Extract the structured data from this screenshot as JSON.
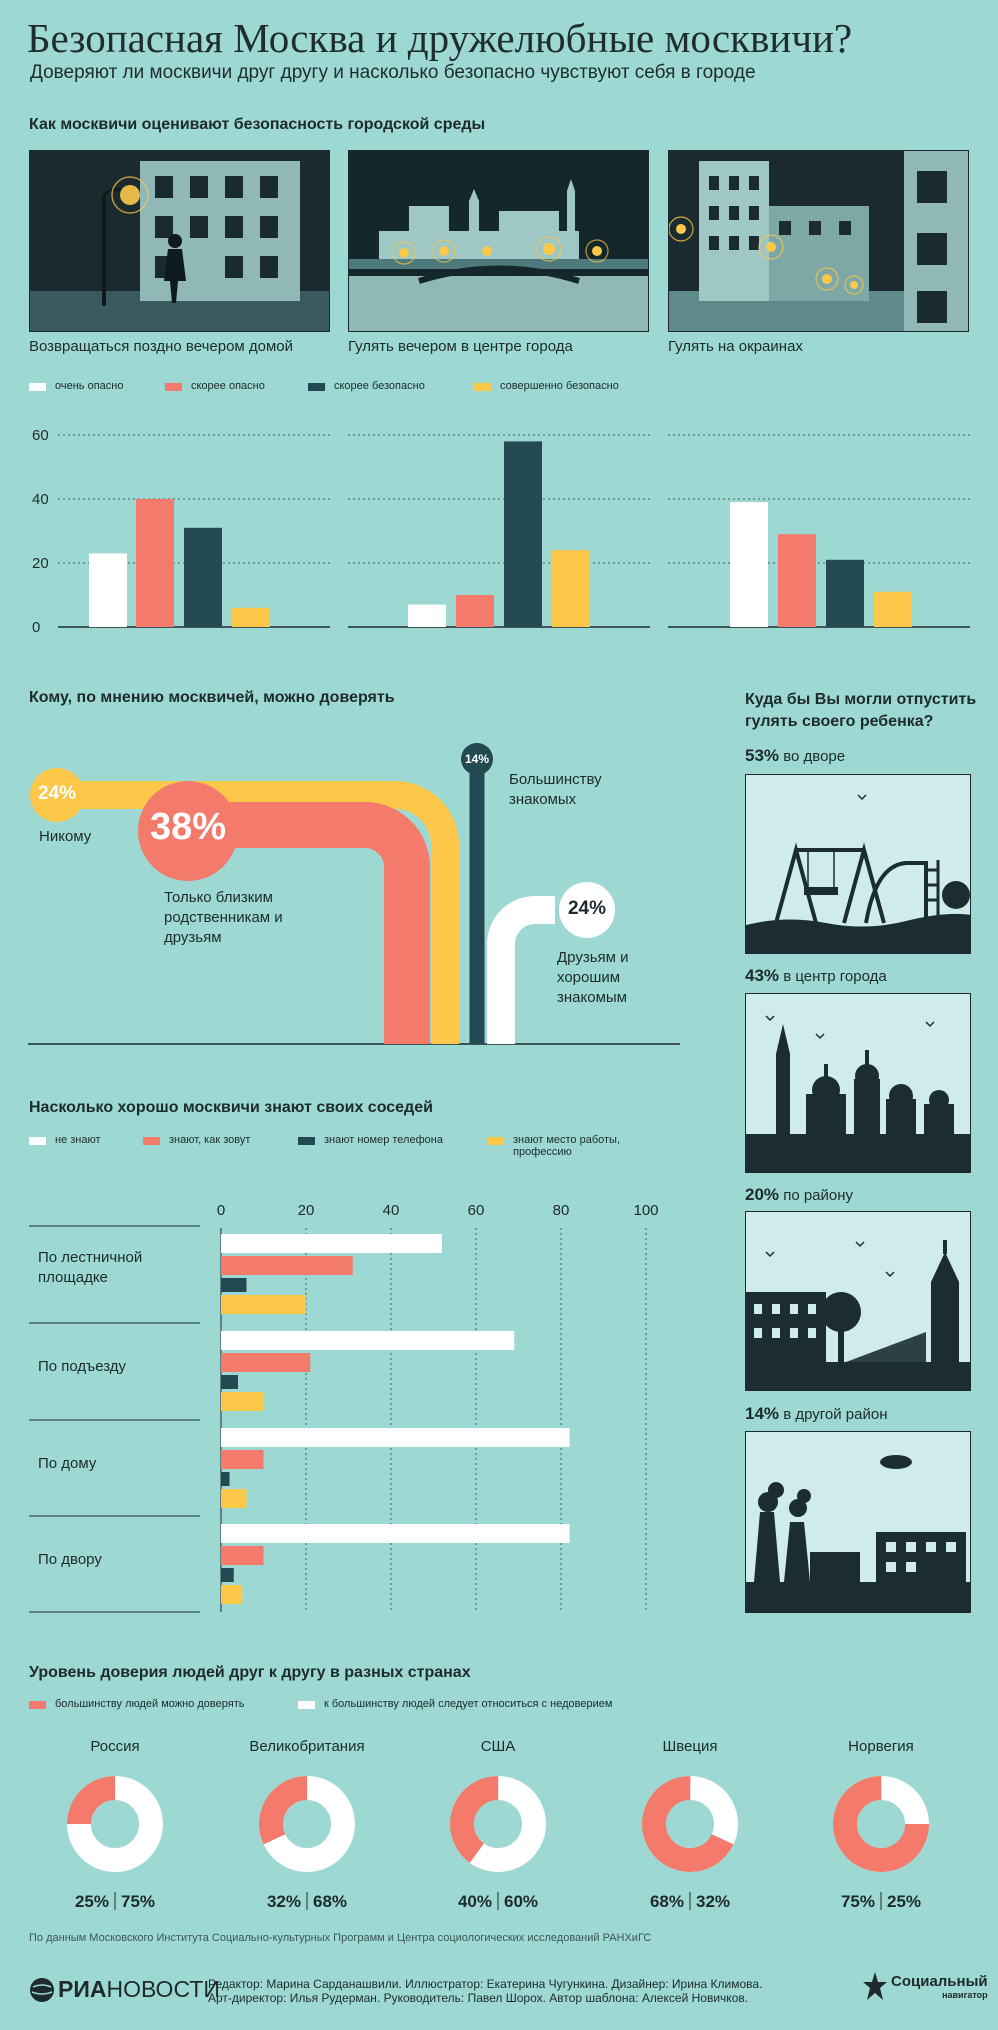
{
  "header": {
    "title": "Безопасная Москва и дружелюбные москвичи?",
    "subtitle": "Доверяют ли москвичи друг другу и насколько безопасно чувствуют себя в городе"
  },
  "safety": {
    "heading": "Как москвичи оценивают безопасность городской среды",
    "photos": [
      {
        "caption": "Возвращаться поздно вечером домой"
      },
      {
        "caption": "Гулять вечером в центре города"
      },
      {
        "caption": "Гулять на окраинах"
      }
    ],
    "legend": [
      "очень опасно",
      "скорее опасно",
      "скорее безопасно",
      "совершенно безопасно"
    ]
  },
  "trust": {
    "heading": "Кому, по мнению москвичей, можно доверять",
    "items": [
      {
        "value": "24%",
        "label": "Никому"
      },
      {
        "value": "38%",
        "label": "Только близким родственникам и друзьям"
      },
      {
        "value": "14%",
        "label": "Большинству знакомых"
      },
      {
        "value": "24%",
        "label": "Друзьям и хорошим знакомым"
      }
    ]
  },
  "child": {
    "heading": "Куда бы Вы могли отпустить гулять своего ребенка?",
    "items": [
      {
        "pct": "53%",
        "label": "во дворе"
      },
      {
        "pct": "43%",
        "label": "в центр города"
      },
      {
        "pct": "20%",
        "label": "по району"
      },
      {
        "pct": "14%",
        "label": "в другой район"
      }
    ]
  },
  "neighbors": {
    "heading": "Насколько хорошо москвичи знают своих соседей",
    "legend": [
      "не знают",
      "знают, как зовут",
      "знают номер телефона",
      "знают место работы, профессию"
    ]
  },
  "countries": {
    "heading": "Уровень доверия людей друг к другу в разных странах",
    "legend": [
      "большинству людей можно доверять",
      "к большинству людей следует относиться с недоверием"
    ]
  },
  "footer": {
    "source": "По данным Московского Института Социально-культурных Программ и Центра социологических исследований РАНХиГС",
    "logo_left_a": "РИА",
    "logo_left_b": "НОВОСТИ",
    "credits_1": "Редактор: Марина Сарданашвили. Иллюстратор: Екатерина Чугункина. Дизайнер: Ирина Климова.",
    "credits_2": "Арт-директор: Илья Рудерман. Руководитель: Павел Шорох. Автор шаблона: Алексей Новичков.",
    "logo_right_a": "Социальный",
    "logo_right_b": "навигатор"
  },
  "colors": {
    "white": "#ffffff",
    "red": "#f47a6b",
    "dark": "#234a52",
    "yellow": "#fdc84a",
    "background": "#9dd8d3"
  },
  "chart_data": [
    {
      "type": "bar",
      "categories": [
        "Возвращаться поздно вечером домой",
        "Гулять вечером в центре города",
        "Гулять на окраинах"
      ],
      "series": [
        {
          "name": "очень опасно",
          "values": [
            23,
            7,
            39
          ]
        },
        {
          "name": "скорее опасно",
          "values": [
            40,
            10,
            29
          ]
        },
        {
          "name": "скорее безопасно",
          "values": [
            31,
            58,
            21
          ]
        },
        {
          "name": "совершенно безопасно",
          "values": [
            6,
            24,
            11
          ]
        }
      ],
      "yticks": [
        0,
        20,
        40,
        60
      ],
      "ylim": [
        0,
        60
      ]
    },
    {
      "type": "bar",
      "orientation": "horizontal",
      "categories": [
        "По лестничной площадке",
        "По подъезду",
        "По дому",
        "По двору"
      ],
      "series": [
        {
          "name": "не знают",
          "values": [
            52,
            69,
            82,
            82
          ]
        },
        {
          "name": "знают, как зовут",
          "values": [
            31,
            21,
            10,
            10
          ]
        },
        {
          "name": "знают номер телефона",
          "values": [
            6,
            4,
            2,
            3
          ]
        },
        {
          "name": "знают место работы, профессию",
          "values": [
            20,
            10,
            6,
            5
          ]
        }
      ],
      "xticks": [
        0,
        20,
        40,
        60,
        80,
        100
      ],
      "xlim": [
        0,
        100
      ]
    },
    {
      "type": "pie",
      "charts": [
        {
          "title": "Россия",
          "values": [
            25,
            75
          ],
          "labels": [
            "25%",
            "75%"
          ]
        },
        {
          "title": "Великобритания",
          "values": [
            32,
            68
          ],
          "labels": [
            "32%",
            "68%"
          ]
        },
        {
          "title": "США",
          "values": [
            40,
            60
          ],
          "labels": [
            "40%",
            "60%"
          ]
        },
        {
          "title": "Швеция",
          "values": [
            68,
            32
          ],
          "labels": [
            "68%",
            "32%"
          ]
        },
        {
          "title": "Норвегия",
          "values": [
            75,
            25
          ],
          "labels": [
            "75%",
            "25%"
          ]
        }
      ],
      "series_names": [
        "большинству людей можно доверять",
        "к большинству людей следует относиться с недоверием"
      ]
    }
  ]
}
